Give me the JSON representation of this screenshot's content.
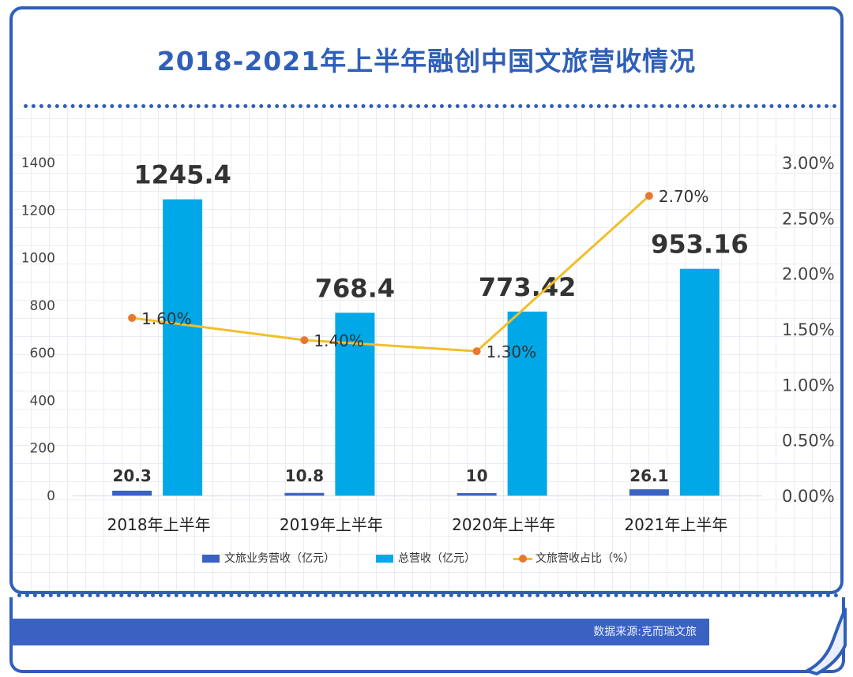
{
  "title": "2018-2021年上半年融创中国文旅营收情况",
  "source": "数据来源:克而瑞文旅",
  "colors": {
    "frame": "#2f5fb8",
    "series_tourism": "#3a62c2",
    "series_total": "#00a8e8",
    "series_ratio_line": "#f3be2a",
    "series_ratio_marker": "#e8782f"
  },
  "chart_data": {
    "type": "bar",
    "categories": [
      "2018年上半年",
      "2019年上半年",
      "2020年上半年",
      "2021年上半年"
    ],
    "series": [
      {
        "name": "文旅业务营收（亿元）",
        "type": "bar",
        "axis": "left",
        "values": [
          20.3,
          10.8,
          10,
          26.1
        ],
        "labels": [
          "20.3",
          "10.8",
          "10",
          "26.1"
        ]
      },
      {
        "name": "总营收（亿元）",
        "type": "bar",
        "axis": "left",
        "values": [
          1245.4,
          768.4,
          773.42,
          953.16
        ],
        "labels": [
          "1245.4",
          "768.4",
          "773.42",
          "953.16"
        ]
      },
      {
        "name": "文旅营收占比（%）",
        "type": "line",
        "axis": "right",
        "values": [
          1.6,
          1.4,
          1.3,
          2.7
        ],
        "labels": [
          "1.60%",
          "1.40%",
          "1.30%",
          "2.70%"
        ]
      }
    ],
    "y_left": {
      "min": 0,
      "max": 1400,
      "ticks": [
        "0",
        "200",
        "400",
        "600",
        "800",
        "1000",
        "1200",
        "1400"
      ]
    },
    "y_right": {
      "min": 0,
      "max": 3,
      "ticks": [
        "0.00%",
        "0.50%",
        "1.00%",
        "1.50%",
        "2.00%",
        "2.50%",
        "3.00%"
      ]
    },
    "legend_position": "bottom",
    "grid": true
  }
}
